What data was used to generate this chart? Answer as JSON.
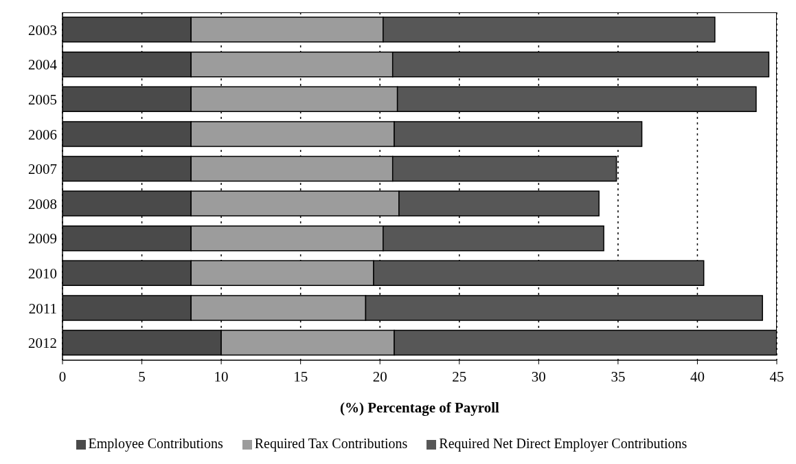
{
  "chart_data": {
    "type": "bar",
    "orientation": "horizontal",
    "stacked": true,
    "xlabel": "(%) Percentage of Payroll",
    "categories": [
      "2003",
      "2004",
      "2005",
      "2006",
      "2007",
      "2008",
      "2009",
      "2010",
      "2011",
      "2012"
    ],
    "series": [
      {
        "name": "Employee Contributions",
        "color": "#4a4a4a",
        "values": [
          8.1,
          8.1,
          8.1,
          8.1,
          8.1,
          8.1,
          8.1,
          8.1,
          8.1,
          10.0
        ]
      },
      {
        "name": "Required Tax Contributions",
        "color": "#9c9c9c",
        "values": [
          12.1,
          12.7,
          13.0,
          12.8,
          12.7,
          13.1,
          12.1,
          11.5,
          11.0,
          10.9
        ]
      },
      {
        "name": "Required Net Direct Employer Contributions",
        "color": "#575757",
        "values": [
          20.9,
          23.7,
          22.6,
          15.6,
          14.1,
          12.6,
          13.9,
          20.8,
          25.0,
          24.1
        ]
      }
    ],
    "xlim": [
      0,
      45
    ],
    "xticks": [
      0,
      5,
      10,
      15,
      20,
      25,
      30,
      35,
      40,
      45
    ],
    "grid": "x",
    "legend": "bottom"
  }
}
